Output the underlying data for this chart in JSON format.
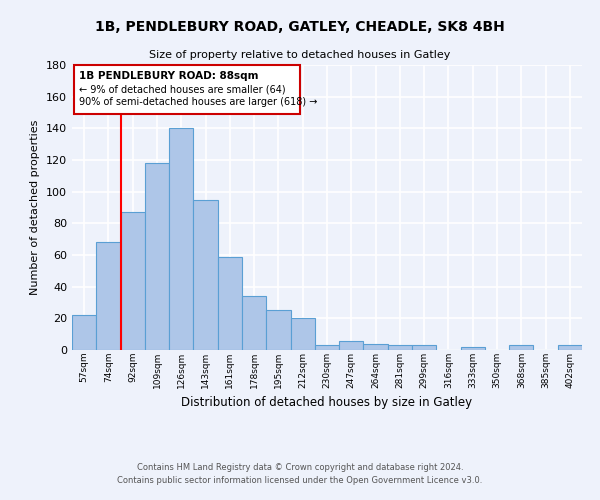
{
  "title": "1B, PENDLEBURY ROAD, GATLEY, CHEADLE, SK8 4BH",
  "subtitle": "Size of property relative to detached houses in Gatley",
  "xlabel": "Distribution of detached houses by size in Gatley",
  "ylabel": "Number of detached properties",
  "bin_labels": [
    "57sqm",
    "74sqm",
    "92sqm",
    "109sqm",
    "126sqm",
    "143sqm",
    "161sqm",
    "178sqm",
    "195sqm",
    "212sqm",
    "230sqm",
    "247sqm",
    "264sqm",
    "281sqm",
    "299sqm",
    "316sqm",
    "333sqm",
    "350sqm",
    "368sqm",
    "385sqm",
    "402sqm"
  ],
  "bar_heights": [
    22,
    68,
    87,
    118,
    140,
    95,
    59,
    34,
    25,
    20,
    3,
    6,
    4,
    3,
    3,
    0,
    2,
    0,
    3,
    0,
    3
  ],
  "bar_color": "#aec6e8",
  "bar_edge_color": "#5a9fd4",
  "ylim": [
    0,
    180
  ],
  "yticks": [
    0,
    20,
    40,
    60,
    80,
    100,
    120,
    140,
    160,
    180
  ],
  "red_line_x": 2,
  "annotation_title": "1B PENDLEBURY ROAD: 88sqm",
  "annotation_line1": "← 9% of detached houses are smaller (64)",
  "annotation_line2": "90% of semi-detached houses are larger (618) →",
  "footer_line1": "Contains HM Land Registry data © Crown copyright and database right 2024.",
  "footer_line2": "Contains public sector information licensed under the Open Government Licence v3.0.",
  "bg_color": "#eef2fb",
  "grid_color": "#ffffff",
  "annotation_box_color": "#ffffff",
  "annotation_box_edge": "#cc0000"
}
